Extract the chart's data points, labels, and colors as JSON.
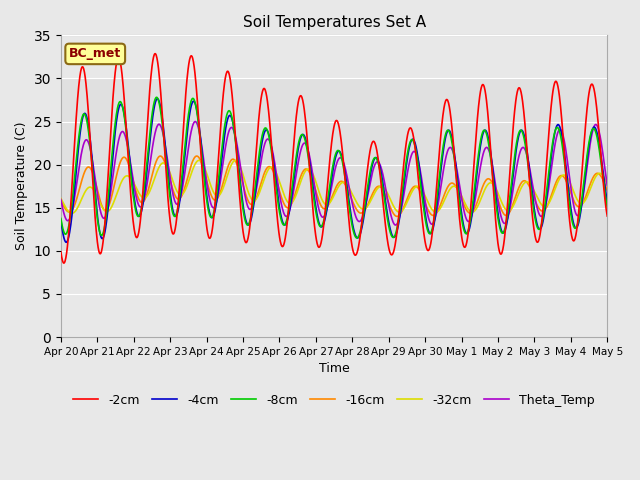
{
  "title": "Soil Temperatures Set A",
  "xlabel": "Time",
  "ylabel": "Soil Temperature (C)",
  "ylim": [
    0,
    35
  ],
  "yticks": [
    0,
    5,
    10,
    15,
    20,
    25,
    30,
    35
  ],
  "bg_color": "#e8e8e8",
  "plot_bg_light": "#dcdcdc",
  "annotation_text": "BC_met",
  "annotation_box_color": "#ffff99",
  "annotation_box_edge": "#8B6914",
  "series": [
    {
      "label": "-2cm",
      "color": "#ff0000",
      "lw": 1.2,
      "zorder": 5
    },
    {
      "label": "-4cm",
      "color": "#0000cc",
      "lw": 1.2,
      "zorder": 4
    },
    {
      "label": "-8cm",
      "color": "#00cc00",
      "lw": 1.2,
      "zorder": 4
    },
    {
      "label": "-16cm",
      "color": "#ff8800",
      "lw": 1.2,
      "zorder": 3
    },
    {
      "label": "-32cm",
      "color": "#dddd00",
      "lw": 1.2,
      "zorder": 3
    },
    {
      "label": "Theta_Temp",
      "color": "#aa00cc",
      "lw": 1.2,
      "zorder": 3
    }
  ],
  "x_tick_labels": [
    "Apr 20",
    "Apr 21",
    "Apr 22",
    "Apr 23",
    "Apr 24",
    "Apr 25",
    "Apr 26",
    "Apr 27",
    "Apr 28",
    "Apr 29",
    "Apr 30",
    "May 1",
    "May 2",
    "May 3",
    "May 4",
    "May 5"
  ],
  "legend_ncol": 6,
  "grid_color": "#ffffff",
  "grid_alpha": 1.0,
  "figsize": [
    6.4,
    4.8
  ],
  "dpi": 100,
  "peaks_2cm": [
    29.0,
    33.0,
    32.0,
    33.5,
    32.0,
    30.0,
    28.0,
    28.0,
    23.0,
    22.5,
    25.5,
    29.0,
    29.5,
    28.5,
    30.5,
    28.5
  ],
  "troughs_2cm": [
    8.5,
    9.5,
    11.5,
    12.0,
    11.5,
    11.0,
    10.5,
    10.5,
    9.5,
    9.5,
    10.0,
    10.5,
    9.5,
    11.0,
    11.0,
    13.0
  ],
  "peaks_4cm": [
    24.0,
    27.0,
    27.0,
    28.0,
    27.0,
    25.0,
    23.5,
    23.5,
    20.5,
    21.0,
    24.0,
    24.0,
    24.0,
    24.0,
    25.0,
    24.0
  ],
  "troughs_4cm": [
    11.0,
    11.0,
    14.0,
    14.0,
    14.0,
    13.0,
    13.0,
    13.0,
    11.5,
    11.5,
    12.0,
    12.0,
    12.0,
    12.5,
    12.5,
    13.5
  ],
  "peaks_8cm": [
    24.0,
    27.0,
    27.5,
    28.0,
    27.5,
    25.5,
    23.5,
    23.5,
    20.5,
    21.0,
    24.0,
    24.0,
    24.0,
    24.0,
    24.5,
    24.0
  ],
  "troughs_8cm": [
    12.0,
    11.5,
    14.0,
    14.0,
    14.0,
    13.0,
    13.0,
    13.0,
    11.5,
    11.5,
    12.0,
    12.0,
    12.0,
    12.5,
    12.5,
    13.5
  ],
  "peaks_16cm": [
    17.5,
    20.5,
    21.0,
    21.0,
    21.0,
    20.5,
    19.5,
    19.5,
    17.5,
    17.5,
    17.5,
    18.0,
    18.5,
    18.0,
    19.0,
    19.0
  ],
  "troughs_16cm": [
    14.5,
    14.5,
    15.5,
    16.0,
    16.0,
    15.5,
    15.0,
    15.0,
    14.5,
    14.0,
    14.0,
    14.5,
    14.0,
    14.5,
    15.0,
    15.5
  ],
  "peaks_32cm": [
    17.0,
    17.5,
    19.0,
    20.5,
    20.5,
    20.5,
    19.5,
    19.5,
    17.5,
    17.5,
    17.5,
    17.5,
    18.0,
    18.0,
    19.0,
    19.0
  ],
  "troughs_32cm": [
    14.5,
    14.0,
    16.0,
    16.5,
    16.5,
    16.0,
    15.5,
    15.5,
    15.0,
    14.5,
    14.5,
    14.5,
    14.5,
    15.0,
    15.5,
    15.5
  ],
  "peaks_theta": [
    21.5,
    23.5,
    24.0,
    25.0,
    25.0,
    24.0,
    22.5,
    22.5,
    20.0,
    20.5,
    22.0,
    22.0,
    22.0,
    22.0,
    25.0,
    24.5
  ],
  "troughs_theta": [
    13.5,
    13.5,
    15.0,
    15.5,
    15.0,
    15.0,
    14.0,
    14.0,
    13.5,
    13.0,
    13.0,
    13.5,
    13.0,
    14.0,
    14.0,
    14.5
  ],
  "phase_offsets_hr": [
    0,
    -1.5,
    -1.0,
    -3.5,
    -5.0,
    -2.5
  ]
}
